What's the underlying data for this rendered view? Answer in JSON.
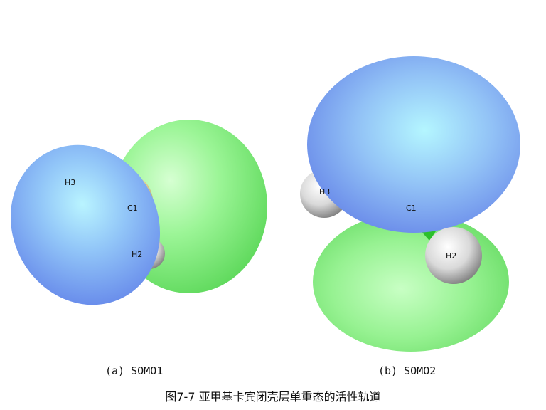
{
  "panels": [
    {
      "caption": "(a) SOMO1",
      "atoms": [
        "H3",
        "C1",
        "H2"
      ],
      "lobe_colors": {
        "positive": "#8fef8a",
        "negative": "#7f9ff0"
      }
    },
    {
      "caption": "(b) SOMO2",
      "atoms": [
        "H3",
        "C1",
        "H2"
      ],
      "lobe_colors": {
        "positive": "#8fef8a",
        "negative": "#7f9ff0"
      }
    }
  ],
  "figure_caption": "图7-7 亚甲基卡宾闭壳层单重态的活性轨道"
}
